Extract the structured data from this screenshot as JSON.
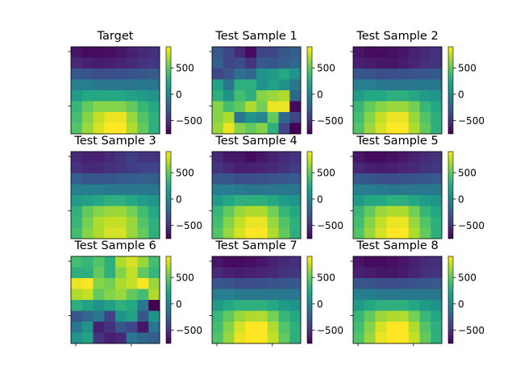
{
  "figure": {
    "colormap": "viridis",
    "colorbar_ticks": [
      500,
      0,
      -500
    ],
    "colorbar_tick_labels": [
      "500",
      "0",
      "−500"
    ],
    "vmin": -750,
    "vmax": 900,
    "grid": false
  },
  "chart_data": [
    {
      "type": "heatmap",
      "title": "Target",
      "values": [
        [
          -650,
          -700,
          -700,
          -680,
          -650,
          -600,
          -550,
          -520
        ],
        [
          -550,
          -600,
          -620,
          -600,
          -580,
          -550,
          -500,
          -480
        ],
        [
          -300,
          -320,
          -350,
          -350,
          -340,
          -320,
          -300,
          -280
        ],
        [
          -50,
          -50,
          -80,
          -100,
          -100,
          -100,
          -80,
          -100
        ],
        [
          150,
          250,
          250,
          250,
          250,
          200,
          150,
          100
        ],
        [
          350,
          500,
          600,
          600,
          600,
          500,
          350,
          250
        ],
        [
          400,
          600,
          750,
          850,
          850,
          650,
          450,
          300
        ],
        [
          450,
          650,
          800,
          900,
          900,
          700,
          500,
          300
        ]
      ],
      "zlim": [
        -750,
        900
      ]
    },
    {
      "type": "heatmap",
      "title": "Test Sample 1",
      "values": [
        [
          -300,
          -400,
          -550,
          -700,
          -400,
          -400,
          -300,
          -250
        ],
        [
          -250,
          -400,
          -350,
          -500,
          -300,
          -300,
          -250,
          -200
        ],
        [
          -400,
          -300,
          -150,
          -200,
          100,
          150,
          250,
          100
        ],
        [
          200,
          -100,
          300,
          300,
          100,
          200,
          100,
          -100
        ],
        [
          300,
          100,
          400,
          300,
          600,
          650,
          700,
          -200
        ],
        [
          600,
          400,
          500,
          700,
          550,
          850,
          850,
          -700
        ],
        [
          600,
          700,
          -100,
          100,
          0,
          500,
          -200,
          -400
        ],
        [
          650,
          850,
          600,
          500,
          600,
          300,
          -400,
          -750
        ]
      ],
      "zlim": [
        -750,
        900
      ]
    },
    {
      "type": "heatmap",
      "title": "Test Sample 2",
      "values": [
        [
          -650,
          -700,
          -700,
          -680,
          -650,
          -600,
          -550,
          -520
        ],
        [
          -600,
          -620,
          -650,
          -650,
          -620,
          -580,
          -520,
          -500
        ],
        [
          -300,
          -320,
          -350,
          -350,
          -340,
          -320,
          -300,
          -280
        ],
        [
          -50,
          -50,
          -80,
          -100,
          -100,
          -100,
          -80,
          -100
        ],
        [
          150,
          250,
          250,
          300,
          300,
          250,
          150,
          100
        ],
        [
          350,
          500,
          600,
          650,
          650,
          550,
          350,
          250
        ],
        [
          400,
          600,
          750,
          850,
          850,
          650,
          450,
          300
        ],
        [
          450,
          650,
          800,
          900,
          900,
          700,
          500,
          300
        ]
      ],
      "zlim": [
        -750,
        900
      ]
    },
    {
      "type": "heatmap",
      "title": "Test Sample 3",
      "values": [
        [
          -550,
          -600,
          -600,
          -550,
          -500,
          -450,
          -500,
          -500
        ],
        [
          -500,
          -550,
          -550,
          -520,
          -480,
          -450,
          -420,
          -400
        ],
        [
          -250,
          -300,
          -300,
          -300,
          -280,
          -260,
          -250,
          -250
        ],
        [
          -50,
          -50,
          -50,
          -80,
          -80,
          -80,
          -80,
          -100
        ],
        [
          150,
          200,
          250,
          300,
          300,
          250,
          150,
          100
        ],
        [
          300,
          500,
          600,
          650,
          650,
          550,
          400,
          250
        ],
        [
          350,
          550,
          700,
          750,
          750,
          650,
          450,
          300
        ],
        [
          400,
          600,
          700,
          800,
          800,
          650,
          500,
          300
        ]
      ],
      "zlim": [
        -750,
        900
      ]
    },
    {
      "type": "heatmap",
      "title": "Test Sample 4",
      "values": [
        [
          -550,
          -650,
          -650,
          -700,
          -650,
          -600,
          -550,
          -500
        ],
        [
          -500,
          -550,
          -600,
          -600,
          -580,
          -550,
          -500,
          -450
        ],
        [
          -300,
          -320,
          -350,
          -350,
          -340,
          -320,
          -300,
          -280
        ],
        [
          -50,
          -50,
          -80,
          -100,
          -100,
          -100,
          -80,
          -100
        ],
        [
          150,
          250,
          300,
          300,
          300,
          250,
          150,
          100
        ],
        [
          350,
          500,
          650,
          700,
          700,
          550,
          350,
          250
        ],
        [
          400,
          600,
          750,
          850,
          850,
          650,
          450,
          300
        ],
        [
          450,
          650,
          800,
          900,
          900,
          700,
          500,
          300
        ]
      ],
      "zlim": [
        -750,
        900
      ]
    },
    {
      "type": "heatmap",
      "title": "Test Sample 5",
      "values": [
        [
          -650,
          -700,
          -700,
          -680,
          -650,
          -600,
          -550,
          -520
        ],
        [
          -550,
          -600,
          -620,
          -600,
          -580,
          -550,
          -500,
          -480
        ],
        [
          -300,
          -320,
          -350,
          -350,
          -340,
          -320,
          -300,
          -280
        ],
        [
          -50,
          -50,
          -80,
          -100,
          -100,
          -100,
          -80,
          -100
        ],
        [
          150,
          250,
          250,
          300,
          300,
          250,
          150,
          100
        ],
        [
          350,
          500,
          650,
          700,
          700,
          550,
          350,
          250
        ],
        [
          400,
          600,
          750,
          850,
          850,
          650,
          450,
          300
        ],
        [
          450,
          650,
          800,
          900,
          900,
          700,
          500,
          300
        ]
      ],
      "zlim": [
        -750,
        900
      ]
    },
    {
      "type": "heatmap",
      "title": "Test Sample 6",
      "values": [
        [
          400,
          350,
          450,
          300,
          700,
          800,
          650,
          400
        ],
        [
          300,
          300,
          500,
          300,
          600,
          750,
          500,
          350
        ],
        [
          850,
          900,
          600,
          550,
          700,
          750,
          900,
          650
        ],
        [
          700,
          750,
          500,
          600,
          650,
          500,
          400,
          700
        ],
        [
          300,
          200,
          100,
          200,
          300,
          250,
          -100,
          -750
        ],
        [
          -300,
          -200,
          -100,
          -400,
          100,
          200,
          -300,
          100
        ],
        [
          -100,
          100,
          -600,
          -500,
          -300,
          -400,
          -650,
          -100
        ],
        [
          100,
          200,
          -500,
          -600,
          -550,
          -100,
          -200,
          -250
        ]
      ],
      "zlim": [
        -750,
        900
      ]
    },
    {
      "type": "heatmap",
      "title": "Test Sample 7",
      "values": [
        [
          -650,
          -700,
          -700,
          -680,
          -650,
          -600,
          -550,
          -520
        ],
        [
          -550,
          -600,
          -620,
          -600,
          -580,
          -550,
          -500,
          -480
        ],
        [
          -300,
          -320,
          -350,
          -350,
          -340,
          -320,
          -300,
          -280
        ],
        [
          -50,
          -50,
          -80,
          -100,
          -100,
          -100,
          -80,
          -100
        ],
        [
          150,
          250,
          300,
          300,
          300,
          250,
          150,
          100
        ],
        [
          350,
          500,
          650,
          700,
          700,
          550,
          350,
          250
        ],
        [
          400,
          600,
          800,
          900,
          900,
          700,
          450,
          300
        ],
        [
          450,
          650,
          850,
          900,
          900,
          750,
          500,
          300
        ]
      ],
      "zlim": [
        -750,
        900
      ]
    },
    {
      "type": "heatmap",
      "title": "Test Sample 8",
      "values": [
        [
          -650,
          -700,
          -700,
          -680,
          -650,
          -600,
          -550,
          -520
        ],
        [
          -600,
          -620,
          -650,
          -650,
          -620,
          -580,
          -520,
          -500
        ],
        [
          -300,
          -320,
          -350,
          -350,
          -340,
          -320,
          -300,
          -280
        ],
        [
          -50,
          -50,
          -80,
          -100,
          -100,
          -100,
          -80,
          -100
        ],
        [
          150,
          250,
          300,
          300,
          300,
          250,
          150,
          100
        ],
        [
          350,
          500,
          650,
          700,
          700,
          550,
          350,
          250
        ],
        [
          400,
          600,
          800,
          900,
          900,
          700,
          450,
          300
        ],
        [
          450,
          650,
          850,
          900,
          900,
          750,
          500,
          300
        ]
      ],
      "zlim": [
        -750,
        900
      ]
    }
  ]
}
